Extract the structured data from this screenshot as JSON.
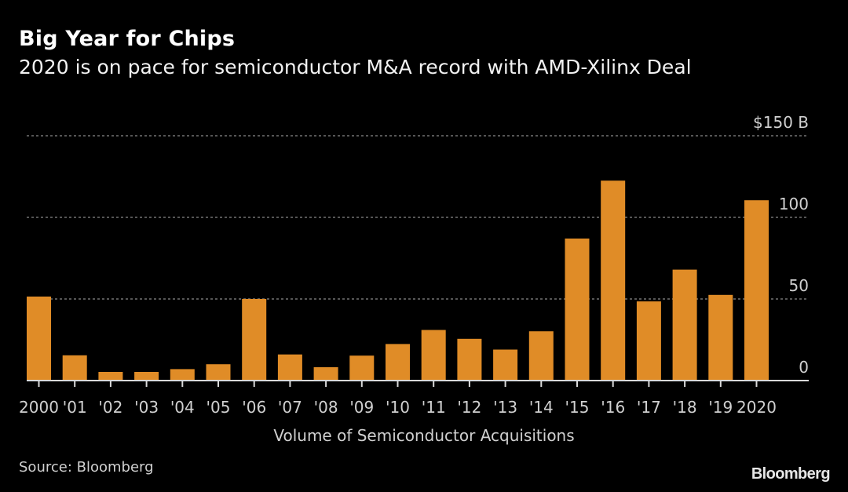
{
  "header": {
    "title": "Big Year for Chips",
    "subtitle": "2020 is on pace for semiconductor M&A record with AMD-Xilinx Deal"
  },
  "footer": {
    "source": "Source: Bloomberg",
    "logo": "Bloomberg"
  },
  "colors": {
    "bar": "#e08c27",
    "background": "#000000",
    "grid": "#8a8a8a",
    "axis": "#d9d9d9",
    "text": "#d0d0d0"
  },
  "chart_data": {
    "type": "bar",
    "title": "Big Year for Chips",
    "subtitle": "2020 is on pace for semiconductor M&A record with AMD-Xilinx Deal",
    "xlabel": "Volume of Semiconductor Acquisitions",
    "ylabel": "",
    "ylim": [
      0,
      150
    ],
    "yticks": [
      0,
      50,
      100,
      150
    ],
    "ytick_labels": [
      "0",
      "50",
      "100",
      "$150 B"
    ],
    "grid": true,
    "y_axis_position": "right",
    "categories": [
      "2000",
      "'01",
      "'02",
      "'03",
      "'04",
      "'05",
      "'06",
      "'07",
      "'08",
      "'09",
      "'10",
      "'11",
      "'12",
      "'13",
      "'14",
      "'15",
      "'16",
      "'17",
      "'18",
      "'19",
      "2020"
    ],
    "values": [
      51.5,
      15.5,
      5.3,
      5.3,
      7,
      10,
      50,
      16,
      8.2,
      15.3,
      22.4,
      31,
      25.6,
      19,
      30.2,
      87,
      122.5,
      48.5,
      68,
      52.5,
      110.5
    ],
    "units": "$ B"
  }
}
